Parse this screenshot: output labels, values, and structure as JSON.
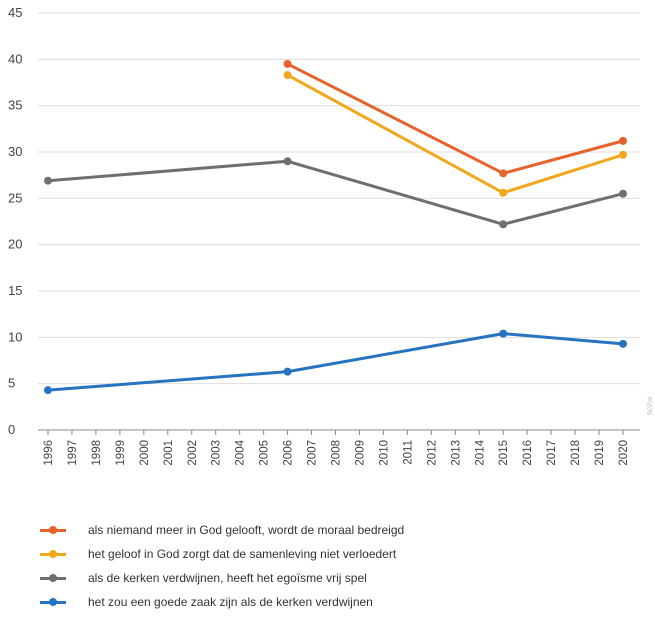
{
  "chart_data": {
    "type": "line",
    "x": [
      "1996",
      "1997",
      "1998",
      "1999",
      "2000",
      "2001",
      "2002",
      "2003",
      "2004",
      "2005",
      "2006",
      "2007",
      "2008",
      "2009",
      "2010",
      "2011",
      "2012",
      "2013",
      "2014",
      "2015",
      "2016",
      "2017",
      "2018",
      "2019",
      "2020"
    ],
    "ylim": [
      0,
      45
    ],
    "yticks": [
      0,
      5,
      10,
      15,
      20,
      25,
      30,
      35,
      40,
      45
    ],
    "grid": true,
    "legend_placement": "bottom",
    "watermark": "SCP.nl",
    "series": [
      {
        "name": "als niemand meer in God gelooft, wordt de moraal bedreigd",
        "color": "#e8622c",
        "points": [
          [
            2006,
            39.5
          ],
          [
            2015,
            27.7
          ],
          [
            2020,
            31.2
          ]
        ]
      },
      {
        "name": "het geloof in God zorgt dat de samenleving niet verloedert",
        "color": "#f2a81d",
        "points": [
          [
            2006,
            38.3
          ],
          [
            2015,
            25.6
          ],
          [
            2020,
            29.7
          ]
        ]
      },
      {
        "name": "als de kerken verdwijnen, heeft het egoïsme vrij spel",
        "color": "#6f6f6f",
        "points": [
          [
            1996,
            26.9
          ],
          [
            2006,
            29.0
          ],
          [
            2015,
            22.2
          ],
          [
            2020,
            25.5
          ]
        ]
      },
      {
        "name": "het zou een goede zaak zijn als de kerken verdwijnen",
        "color": "#2673bf",
        "points": [
          [
            1996,
            4.3
          ],
          [
            2006,
            6.3
          ],
          [
            2015,
            10.4
          ],
          [
            2020,
            9.3
          ]
        ]
      }
    ]
  }
}
